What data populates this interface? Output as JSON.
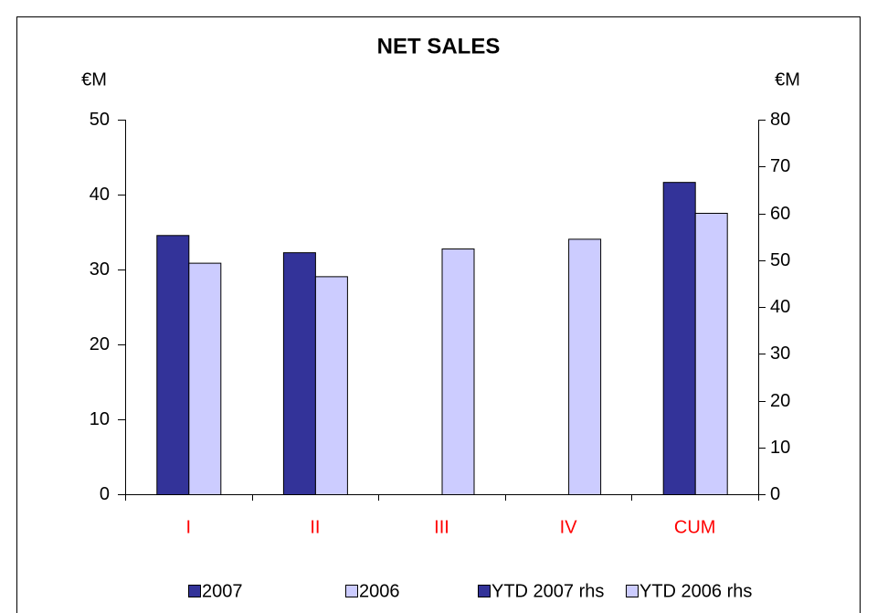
{
  "chart_data": {
    "type": "bar",
    "title": "NET SALES",
    "y_label": "€M",
    "y2_label": "€M",
    "categories": [
      "I",
      "II",
      "III",
      "IV",
      "CUM"
    ],
    "category_color": "#ff0000",
    "series": [
      {
        "name": "2007",
        "color": "#333399",
        "values": [
          34.6,
          32.3,
          null,
          null,
          null
        ]
      },
      {
        "name": "2006",
        "color": "#ccccff",
        "values": [
          30.9,
          29.1,
          32.8,
          34.1,
          null
        ]
      },
      {
        "name": "YTD 2007 rhs",
        "color": "#333399",
        "axis": "y2",
        "values": [
          null,
          null,
          null,
          null,
          66.7
        ]
      },
      {
        "name": "YTD 2006 rhs",
        "color": "#ccccff",
        "axis": "y2",
        "values": [
          null,
          null,
          null,
          null,
          60.1
        ]
      }
    ],
    "ylim": [
      0,
      50
    ],
    "yticks": [
      0,
      10,
      20,
      30,
      40,
      50
    ],
    "y2lim": [
      0,
      80
    ],
    "y2ticks": [
      0,
      10,
      20,
      30,
      40,
      50,
      60,
      70,
      80
    ],
    "grid": false,
    "legend": "bottom"
  }
}
